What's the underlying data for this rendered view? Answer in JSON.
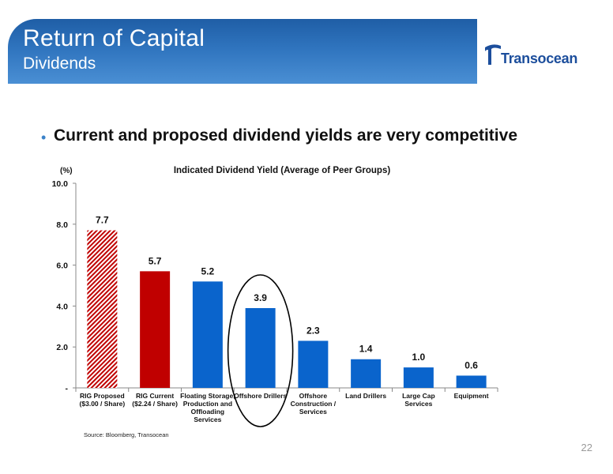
{
  "header": {
    "title": "Return of Capital",
    "subtitle": "Dividends"
  },
  "logo": {
    "text": "Transocean"
  },
  "bullet": {
    "text": "Current and proposed dividend yields are very competitive"
  },
  "chart_data": {
    "type": "bar",
    "title": "Indicated Dividend Yield (Average of Peer Groups)",
    "ylabel": "(%)",
    "ylim": [
      0,
      10
    ],
    "yticks": [
      0,
      2,
      4,
      6,
      8,
      10
    ],
    "ytick_labels": [
      "-",
      "2.0",
      "4.0",
      "6.0",
      "8.0",
      "10.0"
    ],
    "categories": [
      [
        "RIG Proposed",
        "($3.00 / Share)"
      ],
      [
        "RIG Current",
        "($2.24 / Share)"
      ],
      [
        "Floating Storage,",
        "Production and",
        "Offloading",
        "Services"
      ],
      [
        "Offshore Drillers"
      ],
      [
        "Offshore",
        "Construction /",
        "Services"
      ],
      [
        "Land Drillers"
      ],
      [
        "Large Cap",
        "Services"
      ],
      [
        "Equipment"
      ]
    ],
    "values": [
      7.7,
      5.7,
      5.2,
      3.9,
      2.3,
      1.4,
      1.0,
      0.6
    ],
    "value_labels": [
      "7.7",
      "5.7",
      "5.2",
      "3.9",
      "2.3",
      "1.4",
      "1.0",
      "0.6"
    ],
    "bar_styles": [
      "hatched-red",
      "red",
      "blue",
      "blue",
      "blue",
      "blue",
      "blue",
      "blue"
    ],
    "highlighted_category": "Offshore Drillers",
    "grid": false,
    "colors": {
      "red": "#c00000",
      "blue": "#0a64cc"
    },
    "source": "Source:  Bloomberg, Transocean"
  },
  "page_number": "22"
}
